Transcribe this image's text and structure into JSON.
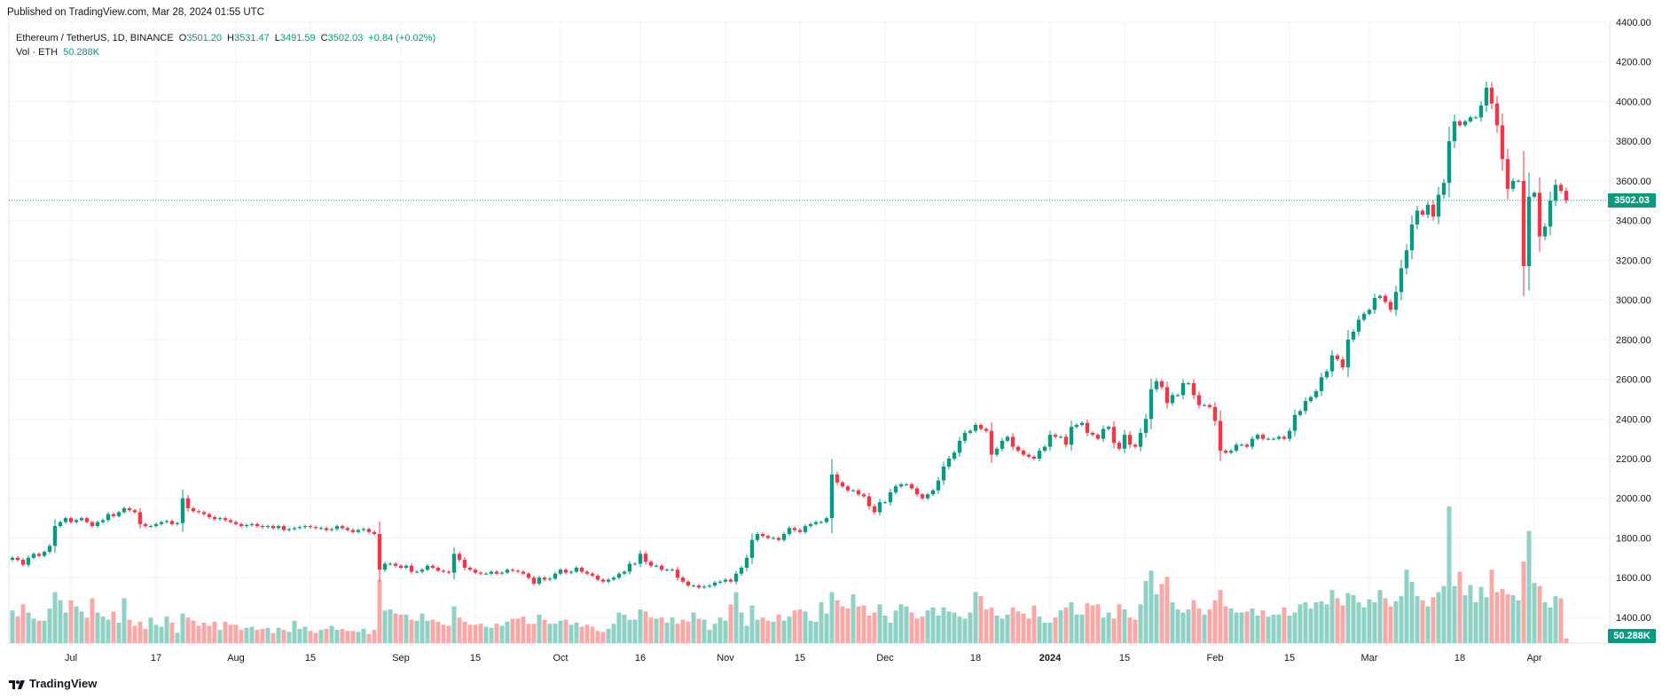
{
  "header": {
    "published": "Published on TradingView.com, Mar 28, 2024 01:55 UTC"
  },
  "legend": {
    "symbol": "Ethereum / TetherUS, 1D, BINANCE",
    "o_label": "O",
    "o": "3501.20",
    "h_label": "H",
    "h": "3531.47",
    "l_label": "L",
    "l": "3491.59",
    "c_label": "C",
    "c": "3502.03",
    "change": "+0.84 (+0.02%)",
    "vol_label": "Vol · ETH",
    "vol": "50.288K"
  },
  "last_price_tag": "3502.03",
  "volume_tag": "50.288K",
  "footer": {
    "brand": "TradingView"
  },
  "colors": {
    "up": "#089981",
    "down": "#f23645",
    "vol_up": "#8fd1c5",
    "vol_down": "#f7a9a7",
    "grid": "#f0f3fa"
  },
  "chart_data": {
    "type": "candlestick",
    "symbol": "ETHUSDT",
    "interval": "1D",
    "y_ticks": [
      "1400.00",
      "1600.00",
      "1800.00",
      "2000.00",
      "2200.00",
      "2400.00",
      "2600.00",
      "2800.00",
      "3000.00",
      "3200.00",
      "3400.00",
      "3600.00",
      "3800.00",
      "4000.00",
      "4200.00",
      "4400.00"
    ],
    "ylim": [
      1270,
      4400
    ],
    "x_ticks": [
      {
        "label": "Jul",
        "date": "2023-07-01"
      },
      {
        "label": "17",
        "date": "2023-07-17"
      },
      {
        "label": "Aug",
        "date": "2023-08-01"
      },
      {
        "label": "15",
        "date": "2023-08-15"
      },
      {
        "label": "Sep",
        "date": "2023-09-01"
      },
      {
        "label": "15",
        "date": "2023-09-15"
      },
      {
        "label": "Oct",
        "date": "2023-10-01"
      },
      {
        "label": "16",
        "date": "2023-10-16"
      },
      {
        "label": "Nov",
        "date": "2023-11-01"
      },
      {
        "label": "15",
        "date": "2023-11-15"
      },
      {
        "label": "Dec",
        "date": "2023-12-01"
      },
      {
        "label": "18",
        "date": "2023-12-18"
      },
      {
        "label": "2024",
        "date": "2024-01-01"
      },
      {
        "label": "15",
        "date": "2024-01-15"
      },
      {
        "label": "Feb",
        "date": "2024-02-01"
      },
      {
        "label": "15",
        "date": "2024-02-15"
      },
      {
        "label": "Mar",
        "date": "2024-03-01"
      },
      {
        "label": "18",
        "date": "2024-03-18"
      },
      {
        "label": "Apr",
        "date": "2024-04-01"
      }
    ],
    "start_date": "2023-06-20",
    "last_close": 3502.03,
    "close_series": [
      1700,
      1690,
      1665,
      1700,
      1720,
      1710,
      1730,
      1760,
      1860,
      1880,
      1900,
      1880,
      1890,
      1900,
      1880,
      1860,
      1880,
      1890,
      1920,
      1910,
      1930,
      1950,
      1940,
      1930,
      1870,
      1860,
      1860,
      1870,
      1880,
      1885,
      1870,
      1875,
      2000,
      1950,
      1935,
      1930,
      1920,
      1905,
      1895,
      1900,
      1890,
      1880,
      1870,
      1860,
      1865,
      1870,
      1860,
      1855,
      1860,
      1850,
      1860,
      1840,
      1845,
      1850,
      1855,
      1860,
      1855,
      1850,
      1850,
      1840,
      1845,
      1860,
      1850,
      1840,
      1830,
      1840,
      1845,
      1830,
      1820,
      1640,
      1670,
      1670,
      1660,
      1650,
      1660,
      1630,
      1630,
      1640,
      1660,
      1650,
      1635,
      1630,
      1625,
      1720,
      1690,
      1650,
      1640,
      1625,
      1620,
      1620,
      1630,
      1620,
      1625,
      1640,
      1635,
      1630,
      1620,
      1600,
      1570,
      1600,
      1590,
      1595,
      1620,
      1640,
      1625,
      1630,
      1650,
      1630,
      1620,
      1610,
      1590,
      1580,
      1590,
      1600,
      1620,
      1630,
      1670,
      1670,
      1720,
      1680,
      1660,
      1660,
      1640,
      1640,
      1640,
      1600,
      1580,
      1560,
      1560,
      1550,
      1555,
      1560,
      1575,
      1580,
      1590,
      1580,
      1620,
      1650,
      1700,
      1790,
      1820,
      1810,
      1800,
      1800,
      1790,
      1820,
      1850,
      1840,
      1830,
      1860,
      1870,
      1880,
      1880,
      1900,
      2120,
      2080,
      2060,
      2040,
      2040,
      2020,
      2010,
      1960,
      1930,
      1980,
      1980,
      2030,
      2060,
      2070,
      2070,
      2050,
      2020,
      2000,
      2020,
      2040,
      2090,
      2160,
      2200,
      2230,
      2290,
      2330,
      2340,
      2370,
      2350,
      2340,
      2220,
      2250,
      2290,
      2310,
      2260,
      2240,
      2220,
      2210,
      2200,
      2240,
      2260,
      2320,
      2310,
      2310,
      2270,
      2360,
      2370,
      2380,
      2330,
      2320,
      2300,
      2350,
      2360,
      2280,
      2250,
      2320,
      2270,
      2260,
      2330,
      2400,
      2550,
      2590,
      2560,
      2480,
      2520,
      2520,
      2580,
      2580,
      2520,
      2470,
      2470,
      2460,
      2390,
      2240,
      2230,
      2240,
      2270,
      2270,
      2260,
      2300,
      2320,
      2300,
      2300,
      2300,
      2310,
      2300,
      2340,
      2420,
      2440,
      2490,
      2510,
      2540,
      2610,
      2640,
      2720,
      2700,
      2660,
      2800,
      2840,
      2900,
      2930,
      2950,
      3010,
      3020,
      2990,
      2950,
      3040,
      3160,
      3250,
      3380,
      3450,
      3430,
      3480,
      3420,
      3530,
      3590,
      3800,
      3900,
      3880,
      3900,
      3920,
      3920,
      3980,
      4070,
      3990,
      3880,
      3710,
      3560,
      3600,
      3600,
      3170,
      3520,
      3540,
      3320,
      3370,
      3500,
      3580,
      3550,
      3502
    ],
    "volume_series_k": [
      320,
      260,
      380,
      300,
      240,
      220,
      220,
      340,
      500,
      420,
      300,
      420,
      360,
      310,
      250,
      440,
      300,
      260,
      230,
      310,
      200,
      440,
      230,
      170,
      210,
      140,
      250,
      180,
      160,
      260,
      200,
      100,
      290,
      250,
      220,
      170,
      200,
      170,
      210,
      130,
      210,
      180,
      180,
      130,
      150,
      160,
      130,
      140,
      150,
      100,
      150,
      130,
      110,
      220,
      140,
      160,
      120,
      100,
      130,
      140,
      170,
      130,
      140,
      120,
      120,
      110,
      140,
      90,
      130,
      620,
      320,
      330,
      290,
      280,
      280,
      230,
      220,
      290,
      220,
      230,
      210,
      180,
      170,
      360,
      250,
      210,
      180,
      180,
      190,
      160,
      150,
      190,
      170,
      210,
      240,
      240,
      260,
      190,
      190,
      280,
      230,
      190,
      190,
      220,
      230,
      180,
      200,
      160,
      180,
      160,
      120,
      110,
      140,
      190,
      300,
      280,
      230,
      230,
      330,
      310,
      250,
      240,
      250,
      200,
      250,
      190,
      230,
      210,
      300,
      240,
      230,
      130,
      190,
      250,
      220,
      380,
      500,
      300,
      170,
      370,
      230,
      250,
      220,
      210,
      280,
      220,
      260,
      320,
      330,
      310,
      220,
      210,
      400,
      290,
      500,
      420,
      360,
      340,
      480,
      360,
      370,
      270,
      300,
      380,
      270,
      200,
      320,
      380,
      360,
      300,
      240,
      260,
      320,
      350,
      270,
      350,
      310,
      300,
      260,
      240,
      300,
      500,
      460,
      330,
      350,
      270,
      240,
      280,
      350,
      310,
      290,
      240,
      370,
      260,
      200,
      200,
      250,
      320,
      350,
      400,
      280,
      280,
      390,
      370,
      380,
      250,
      300,
      240,
      380,
      330,
      250,
      230,
      380,
      610,
      710,
      480,
      580,
      650,
      400,
      330,
      300,
      330,
      420,
      340,
      280,
      330,
      420,
      520,
      360,
      340,
      300,
      300,
      310,
      340,
      270,
      320,
      260,
      280,
      280,
      350,
      270,
      300,
      380,
      400,
      340,
      400,
      410,
      380,
      520,
      440,
      370,
      490,
      470,
      400,
      350,
      430,
      400,
      520,
      440,
      360,
      410,
      460,
      720,
      600,
      460,
      420,
      360,
      450,
      500,
      560,
      1340,
      560,
      700,
      470,
      570,
      400,
      550,
      450,
      720,
      500,
      530,
      480,
      470,
      420,
      800,
      1100,
      590,
      560,
      400,
      350,
      460,
      440,
      47
    ]
  }
}
